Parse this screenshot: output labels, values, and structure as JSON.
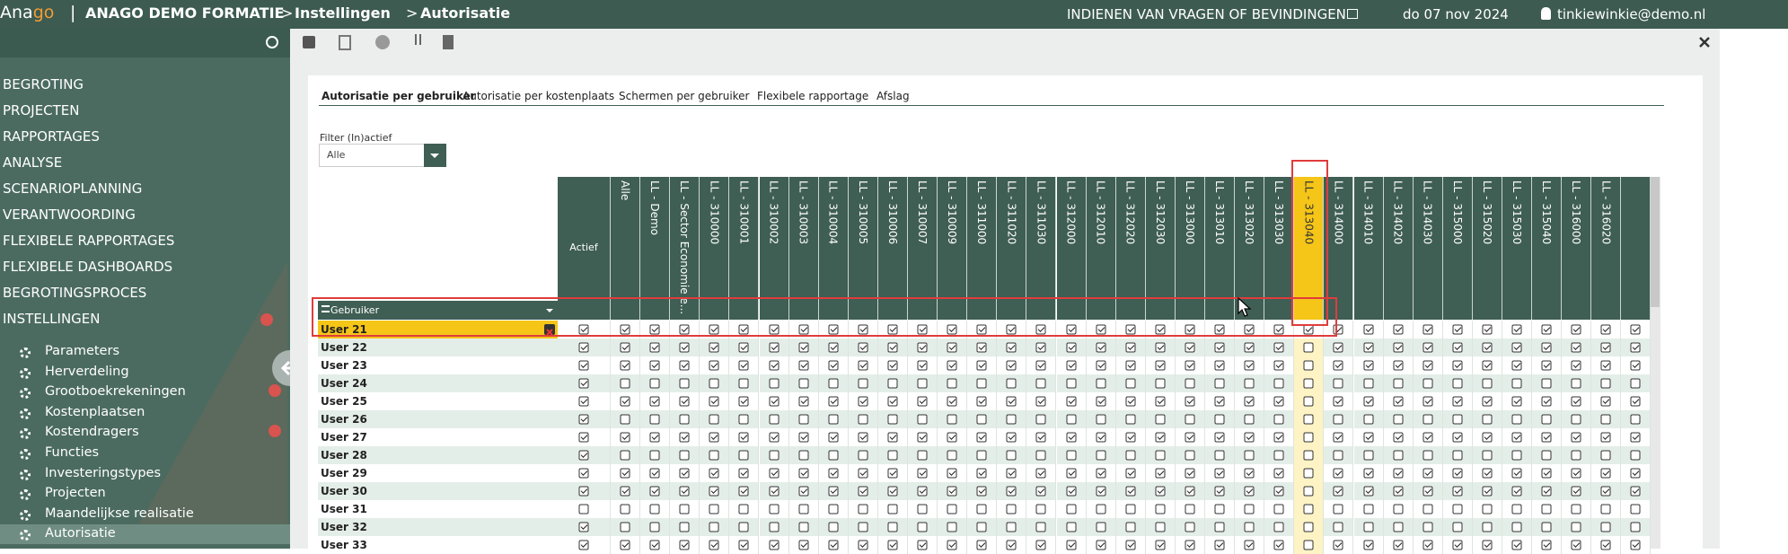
{
  "header": {
    "logo_a": "Ana",
    "logo_b": "go",
    "separator": "|",
    "crumbs": [
      "ANAGO DEMO FORMATIE",
      ">",
      "Instellingen",
      ">",
      "Autorisatie"
    ],
    "feedback": "INDIENEN VAN VRAGEN OF BEVINDINGEN",
    "date": "do 07 nov 2024",
    "user": "tinkiewinkie@demo.nl"
  },
  "menu": [
    "BEGROTING",
    "PROJECTEN",
    "RAPPORTAGES",
    "ANALYSE",
    "SCENARIOPLANNING",
    "VERANTWOORDING",
    "FLEXIBELE RAPPORTAGES",
    "FLEXIBELE DASHBOARDS",
    "BEGROTINGSPROCES",
    "INSTELLINGEN"
  ],
  "submenu": [
    "Parameters",
    "Herverdeling",
    "Grootboekrekeningen",
    "Kostenplaatsen",
    "Kostendragers",
    "Functies",
    "Investeringstypes",
    "Projecten",
    "Maandelijkse realisatie",
    "Autorisatie"
  ],
  "tabs": [
    "Autorisatie per gebruiker",
    "Autorisatie per kostenplaats",
    "Schermen per gebruiker",
    "Flexibele rapportage",
    "Afslag"
  ],
  "filter": {
    "label": "Filter (In)actief",
    "value": "Alle"
  },
  "table": {
    "user_header": "Gebruiker",
    "columns": [
      "Actief",
      "Alle",
      "LL - Demo",
      "LL - Sector Economie e...",
      "LL - 310000",
      "LL - 310001",
      "LL - 310002",
      "LL - 310003",
      "LL - 310004",
      "LL - 310005",
      "LL - 310006",
      "LL - 310007",
      "LL - 310009",
      "LL - 311000",
      "LL - 311020",
      "LL - 311030",
      "LL - 312000",
      "LL - 312010",
      "LL - 312020",
      "LL - 312030",
      "LL - 313000",
      "LL - 313010",
      "LL - 313020",
      "LL - 313030",
      "LL - 313040",
      "LL - 314000",
      "LL - 314010",
      "LL - 314020",
      "LL - 314030",
      "LL - 315000",
      "LL - 315020",
      "LL - 315030",
      "LL - 315040",
      "LL - 316000",
      "LL - 316020",
      null
    ],
    "selected_column": 24,
    "selected_row": 0,
    "rows": [
      {
        "name": "User 21",
        "checked": [
          1,
          1,
          1,
          1,
          1,
          1,
          1,
          1,
          1,
          1,
          1,
          1,
          1,
          1,
          1,
          1,
          1,
          1,
          1,
          1,
          1,
          1,
          1,
          1,
          1,
          1,
          1,
          1,
          1,
          1,
          1,
          1,
          1,
          1,
          1,
          1
        ]
      },
      {
        "name": "User 22",
        "checked": [
          1,
          1,
          1,
          1,
          1,
          1,
          1,
          1,
          1,
          1,
          1,
          1,
          1,
          1,
          1,
          1,
          1,
          1,
          1,
          1,
          1,
          1,
          1,
          1,
          0,
          1,
          1,
          1,
          1,
          1,
          1,
          1,
          1,
          1,
          1,
          1
        ]
      },
      {
        "name": "User 23",
        "checked": [
          1,
          1,
          1,
          1,
          1,
          1,
          1,
          1,
          1,
          1,
          1,
          1,
          1,
          1,
          1,
          1,
          1,
          1,
          1,
          1,
          1,
          1,
          1,
          1,
          0,
          1,
          1,
          1,
          1,
          1,
          1,
          1,
          1,
          1,
          1,
          1
        ]
      },
      {
        "name": "User 24",
        "checked": [
          1,
          0,
          0,
          0,
          0,
          0,
          0,
          0,
          0,
          0,
          0,
          0,
          0,
          0,
          0,
          0,
          0,
          0,
          0,
          0,
          0,
          0,
          0,
          0,
          0,
          0,
          0,
          0,
          0,
          0,
          0,
          0,
          0,
          0,
          0,
          0
        ]
      },
      {
        "name": "User 25",
        "checked": [
          1,
          1,
          1,
          1,
          1,
          1,
          1,
          1,
          1,
          1,
          1,
          1,
          1,
          1,
          1,
          1,
          1,
          1,
          1,
          1,
          1,
          1,
          1,
          1,
          0,
          1,
          1,
          1,
          1,
          1,
          1,
          1,
          1,
          1,
          1,
          1
        ]
      },
      {
        "name": "User 26",
        "checked": [
          1,
          0,
          0,
          0,
          0,
          0,
          0,
          0,
          0,
          0,
          0,
          0,
          0,
          0,
          0,
          0,
          0,
          0,
          0,
          0,
          0,
          0,
          0,
          0,
          0,
          0,
          0,
          0,
          0,
          0,
          0,
          0,
          0,
          0,
          0,
          0
        ]
      },
      {
        "name": "User 27",
        "checked": [
          1,
          1,
          1,
          1,
          1,
          1,
          1,
          1,
          1,
          1,
          1,
          1,
          1,
          1,
          1,
          1,
          1,
          1,
          1,
          1,
          1,
          1,
          1,
          1,
          0,
          1,
          1,
          1,
          1,
          1,
          1,
          1,
          1,
          1,
          1,
          1
        ]
      },
      {
        "name": "User 28",
        "checked": [
          1,
          0,
          0,
          0,
          0,
          0,
          0,
          0,
          0,
          0,
          0,
          0,
          0,
          0,
          0,
          0,
          0,
          0,
          0,
          0,
          0,
          0,
          0,
          0,
          0,
          0,
          0,
          0,
          0,
          0,
          0,
          0,
          0,
          0,
          0,
          0
        ]
      },
      {
        "name": "User 29",
        "checked": [
          1,
          1,
          1,
          1,
          1,
          1,
          1,
          1,
          1,
          1,
          1,
          1,
          1,
          1,
          1,
          1,
          1,
          1,
          1,
          1,
          1,
          1,
          1,
          1,
          0,
          1,
          1,
          1,
          1,
          1,
          1,
          1,
          1,
          1,
          1,
          1
        ]
      },
      {
        "name": "User 30",
        "checked": [
          1,
          1,
          1,
          1,
          1,
          1,
          1,
          1,
          1,
          1,
          1,
          1,
          1,
          1,
          1,
          1,
          1,
          1,
          1,
          1,
          1,
          1,
          1,
          1,
          0,
          1,
          1,
          1,
          1,
          1,
          1,
          1,
          1,
          1,
          1,
          1
        ]
      },
      {
        "name": "User 31",
        "checked": [
          0,
          0,
          0,
          0,
          0,
          0,
          0,
          0,
          0,
          0,
          0,
          0,
          0,
          0,
          0,
          0,
          0,
          0,
          0,
          0,
          0,
          0,
          0,
          0,
          0,
          0,
          0,
          0,
          0,
          0,
          0,
          0,
          0,
          0,
          0,
          0
        ]
      },
      {
        "name": "User 32",
        "checked": [
          1,
          0,
          0,
          0,
          0,
          0,
          0,
          0,
          0,
          0,
          0,
          0,
          0,
          0,
          0,
          0,
          0,
          0,
          0,
          0,
          0,
          0,
          0,
          0,
          0,
          0,
          0,
          0,
          0,
          0,
          0,
          0,
          0,
          0,
          0,
          0
        ]
      },
      {
        "name": "User 33",
        "checked": [
          1,
          1,
          1,
          1,
          1,
          1,
          1,
          1,
          1,
          1,
          1,
          1,
          1,
          1,
          1,
          1,
          1,
          1,
          1,
          1,
          1,
          1,
          1,
          1,
          0,
          1,
          1,
          1,
          1,
          1,
          1,
          1,
          1,
          1,
          1,
          1
        ]
      }
    ]
  }
}
